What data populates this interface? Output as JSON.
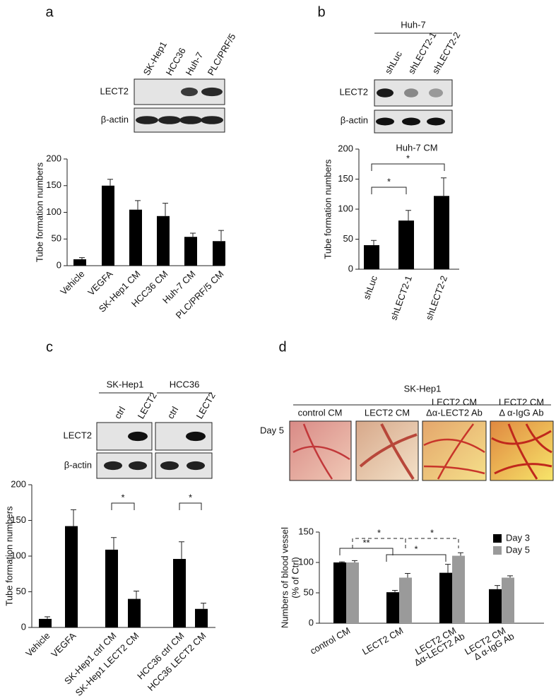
{
  "figure": {
    "panel_labels": [
      "a",
      "b",
      "c",
      "d"
    ],
    "blot_a": {
      "lanes": [
        "SK-Hep1",
        "HCC36",
        "Huh-7",
        "PLC/PRF/5"
      ],
      "rows": [
        "LECT2",
        "β-actin"
      ]
    },
    "blot_b": {
      "group": "Huh-7",
      "lanes": [
        "shLuc",
        "shLECT2-1",
        "shLECT2-2"
      ],
      "rows": [
        "LECT2",
        "β-actin"
      ]
    },
    "blot_c": {
      "groups": [
        "SK-Hep1",
        "HCC36"
      ],
      "lanes": [
        "ctrl",
        "LECT2",
        "ctrl",
        "LECT2"
      ],
      "rows": [
        "LECT2",
        "β-actin"
      ]
    },
    "images_d": {
      "group": "SK-Hep1",
      "row_label": "Day 5",
      "labels": [
        [
          "control CM"
        ],
        [
          "LECT2 CM"
        ],
        [
          "LECT2 CM",
          "Δα-LECT2 Ab"
        ],
        [
          "LECT2 CM",
          "Δ α-IgG Ab"
        ]
      ]
    }
  },
  "chart_data": [
    {
      "type": "bar",
      "ylabel": "Tube formation numbers",
      "color": "#000000",
      "categories": [
        "Vehicle",
        "VEGFA",
        "SK-Hep1 CM",
        "HCC36 CM",
        "Huh-7 CM",
        "PLC/PRF/5 CM"
      ],
      "values": [
        12,
        150,
        105,
        93,
        54,
        46
      ],
      "errors": [
        3,
        12,
        17,
        24,
        7,
        20
      ],
      "ylim": [
        0,
        200
      ],
      "yticks": [
        0,
        50,
        100,
        150,
        200
      ]
    },
    {
      "type": "bar",
      "title": "Huh-7 CM",
      "ylabel": "Tube formation numbers",
      "color": "#000000",
      "categories": [
        "shLuc",
        "shLECT2-1",
        "shLECT2-2"
      ],
      "values": [
        40,
        81,
        122
      ],
      "errors": [
        8,
        17,
        30
      ],
      "annotations": [
        "*",
        "*"
      ],
      "ylim": [
        0,
        200
      ],
      "yticks": [
        0,
        50,
        100,
        150,
        200
      ]
    },
    {
      "type": "bar",
      "ylabel": "Tube formation numbers",
      "color": "#000000",
      "categories": [
        "Vehicle",
        "VEGFA",
        "SK-Hep1 ctrl CM",
        "SK-Hep1 LECT2 CM",
        "HCC36 ctrl CM",
        "HCC36  LECT2 CM"
      ],
      "values": [
        12,
        142,
        109,
        40,
        96,
        26
      ],
      "errors": [
        3,
        23,
        17,
        11,
        24,
        8
      ],
      "annotations": [
        "*",
        "*"
      ],
      "ylim": [
        0,
        200
      ],
      "yticks": [
        0,
        50,
        100,
        150,
        200
      ]
    },
    {
      "type": "grouped_bar",
      "ylabel": [
        "Numbers of blood vessel",
        "(% of Ctrl)"
      ],
      "categories": [
        [
          "control CM"
        ],
        [
          "LECT2 CM"
        ],
        [
          "LECT2 CM",
          "Δα-LECT2 Ab"
        ],
        [
          "LECT2 CM",
          "Δ α-IgG Ab"
        ]
      ],
      "series": [
        {
          "name": "Day 3",
          "color": "#000000",
          "values": [
            100,
            51,
            83,
            56
          ],
          "errors": [
            1,
            3,
            14,
            6
          ]
        },
        {
          "name": "Day 5",
          "color": "#9a9a9a",
          "values": [
            100,
            75,
            111,
            75
          ],
          "errors": [
            3,
            7,
            5,
            3
          ]
        }
      ],
      "annotations": [
        "*",
        "*",
        "**",
        "*"
      ],
      "legend": "upper right",
      "ylim": [
        0,
        150
      ],
      "yticks": [
        0,
        50,
        100,
        150
      ]
    }
  ]
}
